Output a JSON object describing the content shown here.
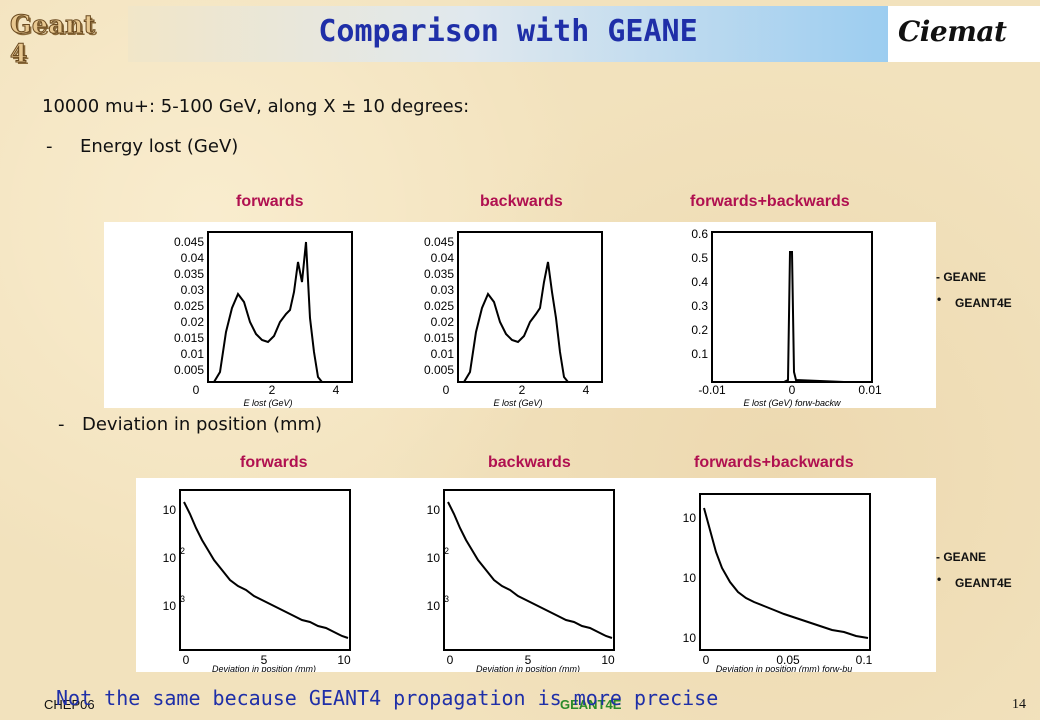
{
  "header": {
    "logo_left": "Geant 4",
    "title": "Comparison with GEANE",
    "logo_right": "Ciemat"
  },
  "intro": {
    "line1": "10000 mu+: 5-100 GeV, along X ± 10 degrees:",
    "bullet_dash": "-",
    "energy_heading": "Energy lost (GeV)",
    "deviation_heading": "Deviation in position (mm)"
  },
  "columns": {
    "forwards": "forwards",
    "backwards": "backwards",
    "sum": "forwards+backwards"
  },
  "legend": {
    "geane": "- GEANE",
    "geant4e": "GEANT4E",
    "dot": "•"
  },
  "energy_plots": {
    "xlabel_fwd": "E lost (GeV)",
    "xlabel_bwd": "E lost (GeV)",
    "xlabel_sum": "E lost (GeV) forw-backw",
    "yticks_fb": [
      "0.045",
      "0.04",
      "0.035",
      "0.03",
      "0.025",
      "0.02",
      "0.015",
      "0.01",
      "0.005"
    ],
    "xticks_fb": [
      "0",
      "2",
      "4"
    ],
    "yticks_sum": [
      "0.6",
      "0.5",
      "0.4",
      "0.3",
      "0.2",
      "0.1"
    ],
    "xticks_sum": [
      "-0.01",
      "0",
      "0.01"
    ]
  },
  "deviation_plots": {
    "xlabel_fwd": "Deviation in position (mm)",
    "xlabel_bwd": "Deviation in position (mm)",
    "xlabel_sum": "Deviation in position (mm) forw-bu",
    "yticks": [
      "10",
      "10",
      "10"
    ],
    "yexp": [
      "2",
      "3"
    ],
    "xticks": [
      "0",
      "5",
      "10"
    ],
    "xticks_sum": [
      "0",
      "0.05",
      "0.1"
    ]
  },
  "footer": {
    "left": "CHEP06",
    "center": "GEANT4E",
    "page": "14",
    "conclusion": "Not the same because GEANT4 propagation is more precise"
  }
}
